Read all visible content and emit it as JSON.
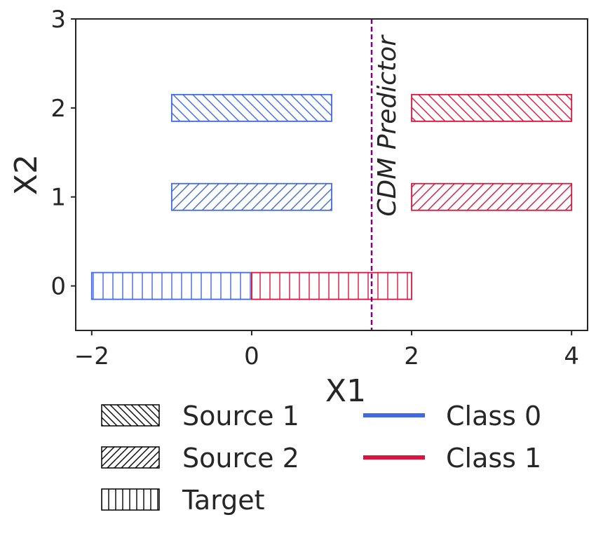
{
  "chart_data": {
    "type": "bar",
    "xlabel": "X1",
    "ylabel": "X2",
    "xlim": [
      -2.2,
      4.2
    ],
    "ylim": [
      -0.5,
      3
    ],
    "xticks": [
      -2,
      0,
      2,
      4
    ],
    "xtick_labels": [
      "−2",
      "0",
      "2",
      "4"
    ],
    "yticks": [
      0,
      1,
      2,
      3
    ],
    "ytick_labels": [
      "0",
      "1",
      "2",
      "3"
    ],
    "grid": false,
    "bars": [
      {
        "source": "Source 1",
        "class": "Class 0",
        "x_start": -1,
        "x_end": 1,
        "y": 2
      },
      {
        "source": "Source 1",
        "class": "Class 1",
        "x_start": 2,
        "x_end": 4,
        "y": 2
      },
      {
        "source": "Source 2",
        "class": "Class 0",
        "x_start": -1,
        "x_end": 1,
        "y": 1
      },
      {
        "source": "Source 2",
        "class": "Class 1",
        "x_start": 2,
        "x_end": 4,
        "y": 1
      },
      {
        "source": "Target",
        "class": "Class 0",
        "x_start": -2,
        "x_end": 0,
        "y": 0
      },
      {
        "source": "Target",
        "class": "Class 1",
        "x_start": 0,
        "x_end": 2,
        "y": 0
      }
    ],
    "bar_height": 0.3,
    "vline": {
      "x": 1.5,
      "label": "CDM Predictor",
      "color": "#800080"
    },
    "legend": {
      "placement": "bottom",
      "hatch_entries": [
        {
          "label": "Source 1",
          "hatch": "backslash"
        },
        {
          "label": "Source 2",
          "hatch": "slash"
        },
        {
          "label": "Target",
          "hatch": "vertical"
        }
      ],
      "color_entries": [
        {
          "label": "Class 0",
          "color": "#4169e1"
        },
        {
          "label": "Class 1",
          "color": "#dc143c"
        }
      ]
    },
    "colors": {
      "Class 0": "#4169e1",
      "Class 1": "#dc143c"
    }
  }
}
